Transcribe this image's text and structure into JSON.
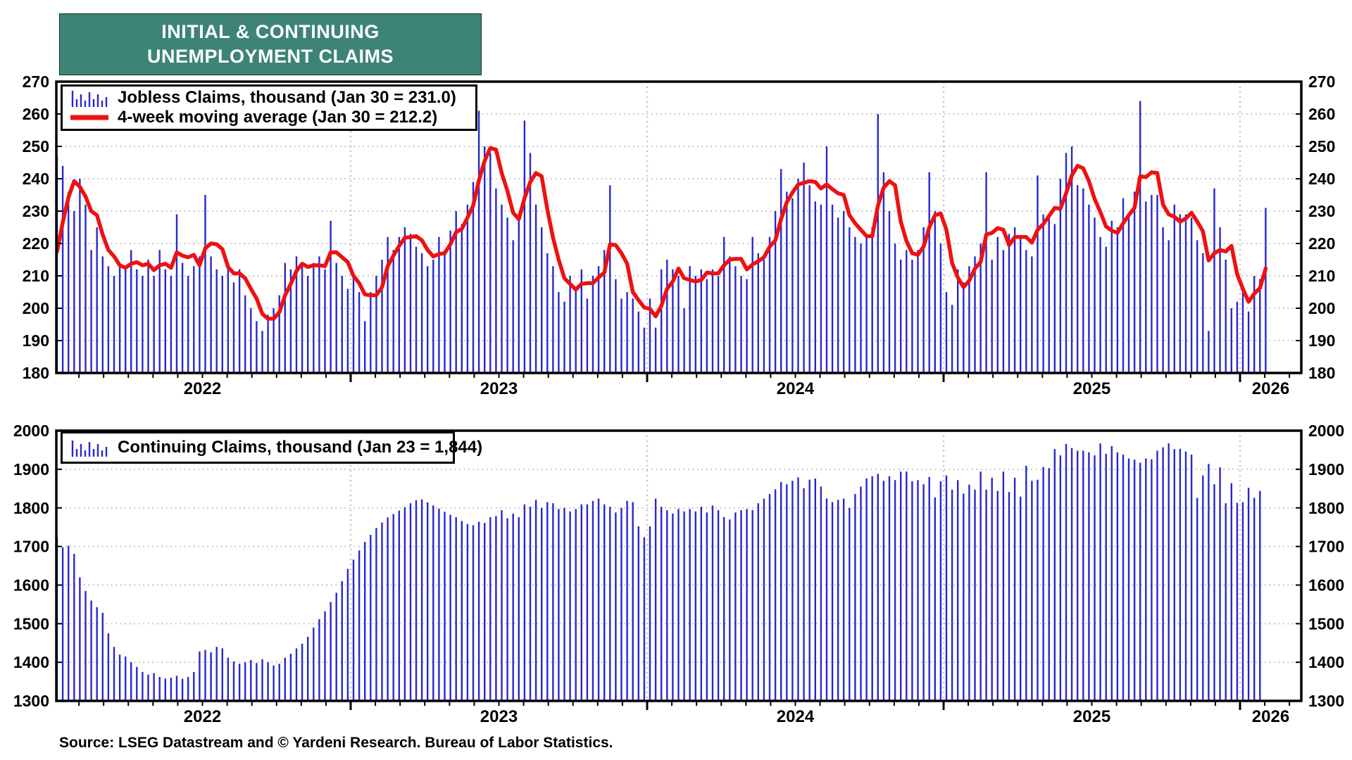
{
  "title": {
    "line1": "INITIAL & CONTINUING",
    "line2": "UNEMPLOYMENT CLAIMS"
  },
  "source_text": "Source: LSEG Datastream and © Yardeni Research. Bureau of Labor Statistics.",
  "colors": {
    "title_bg": "#3d8477",
    "bars": "#2828cd",
    "ma_line": "#ee1111",
    "grid": "#b8b8b8",
    "frame": "#000000"
  },
  "chart_data": [
    {
      "type": "bar",
      "panel": "initial-claims",
      "title": "Jobless Claims",
      "legend": [
        {
          "label": "Jobless Claims, thousand (Jan 30 = 231.0)",
          "swatch": "stems",
          "color": "#2828cd"
        },
        {
          "label": "4-week moving average (Jan 30 = 212.2)",
          "swatch": "line",
          "color": "#ee1111"
        }
      ],
      "ylim": [
        180,
        270
      ],
      "ytick_step": 10,
      "x_years": [
        2022,
        2023,
        2024,
        2025,
        2026
      ],
      "x_start_label": "Jan 2022, weekly",
      "latest": {
        "date": "Jan 30",
        "bar_value": 231.0,
        "ma_value": 212.2
      },
      "ma_window": 4,
      "prior_weeks_for_ma": [
        215,
        208,
        205,
        210
      ],
      "values": [
        247,
        244,
        236,
        230,
        240,
        232,
        218,
        225,
        216,
        213,
        210,
        214,
        213,
        218,
        212,
        210,
        215,
        210,
        218,
        212,
        210,
        229,
        214,
        210,
        213,
        216,
        235,
        216,
        212,
        210,
        213,
        208,
        212,
        204,
        200,
        196,
        193,
        198,
        200,
        204,
        214,
        212,
        216,
        213,
        210,
        214,
        216,
        212,
        227,
        214,
        210,
        206,
        210,
        205,
        196,
        205,
        210,
        215,
        222,
        218,
        222,
        225,
        223,
        219,
        217,
        213,
        215,
        222,
        218,
        224,
        230,
        226,
        232,
        239,
        261,
        250,
        248,
        237,
        232,
        228,
        221,
        229,
        258,
        248,
        232,
        225,
        217,
        213,
        205,
        202,
        210,
        206,
        212,
        203,
        210,
        213,
        218,
        238,
        209,
        203,
        205,
        203,
        199,
        194,
        203,
        194,
        212,
        215,
        212,
        210,
        200,
        213,
        210,
        212,
        209,
        212,
        210,
        222,
        216,
        213,
        210,
        209,
        222,
        217,
        215,
        222,
        230,
        243,
        236,
        234,
        240,
        245,
        238,
        233,
        232,
        250,
        232,
        228,
        230,
        225,
        222,
        220,
        222,
        225,
        260,
        242,
        230,
        220,
        215,
        218,
        215,
        218,
        225,
        242,
        230,
        220,
        205,
        201,
        212,
        208,
        213,
        216,
        220,
        242,
        215,
        222,
        218,
        223,
        225,
        222,
        218,
        216,
        241,
        229,
        228,
        226,
        240,
        248,
        250,
        238,
        237,
        232,
        228,
        222,
        219,
        227,
        225,
        234,
        229,
        236,
        264,
        233,
        235,
        235,
        225,
        221,
        232,
        229,
        229,
        228,
        221,
        217,
        193,
        237,
        225,
        215,
        200,
        202,
        207,
        199,
        210,
        209,
        231
      ],
      "grid": "dotted",
      "legend_position": "top-left"
    },
    {
      "type": "bar",
      "panel": "continuing-claims",
      "title": "Continuing Claims",
      "legend": [
        {
          "label": "Continuing Claims, thousand (Jan 23 = 1,844)",
          "swatch": "stems",
          "color": "#2828cd"
        }
      ],
      "ylim": [
        1300,
        2000
      ],
      "ytick_step": 100,
      "x_years": [
        2022,
        2023,
        2024,
        2025,
        2026
      ],
      "x_start_label": "Jan 2022, weekly",
      "latest": {
        "date": "Jan 23",
        "bar_value": 1844
      },
      "values": [
        1723,
        1698,
        1702,
        1681,
        1620,
        1585,
        1560,
        1543,
        1528,
        1475,
        1440,
        1420,
        1415,
        1400,
        1388,
        1375,
        1368,
        1372,
        1362,
        1358,
        1360,
        1365,
        1357,
        1362,
        1375,
        1428,
        1432,
        1426,
        1440,
        1436,
        1412,
        1402,
        1396,
        1400,
        1406,
        1398,
        1408,
        1400,
        1392,
        1396,
        1412,
        1422,
        1436,
        1448,
        1466,
        1490,
        1512,
        1532,
        1556,
        1580,
        1610,
        1642,
        1666,
        1690,
        1712,
        1730,
        1748,
        1762,
        1775,
        1784,
        1793,
        1802,
        1812,
        1820,
        1822,
        1814,
        1806,
        1798,
        1790,
        1782,
        1776,
        1766,
        1758,
        1755,
        1764,
        1761,
        1776,
        1779,
        1794,
        1773,
        1785,
        1776,
        1809,
        1803,
        1821,
        1800,
        1815,
        1812,
        1797,
        1800,
        1791,
        1797,
        1809,
        1809,
        1818,
        1824,
        1809,
        1803,
        1788,
        1800,
        1818,
        1815,
        1752,
        1724,
        1752,
        1824,
        1803,
        1794,
        1785,
        1797,
        1791,
        1797,
        1791,
        1803,
        1788,
        1806,
        1794,
        1776,
        1770,
        1788,
        1794,
        1797,
        1794,
        1812,
        1824,
        1836,
        1848,
        1867,
        1861,
        1870,
        1879,
        1851,
        1873,
        1876,
        1855,
        1824,
        1815,
        1821,
        1824,
        1800,
        1836,
        1855,
        1876,
        1882,
        1888,
        1870,
        1882,
        1872,
        1894,
        1894,
        1869,
        1872,
        1861,
        1880,
        1827,
        1869,
        1884,
        1847,
        1872,
        1837,
        1860,
        1847,
        1894,
        1847,
        1878,
        1844,
        1894,
        1841,
        1878,
        1829,
        1909,
        1870,
        1873,
        1906,
        1903,
        1952,
        1936,
        1966,
        1955,
        1948,
        1948,
        1944,
        1936,
        1967,
        1940,
        1960,
        1944,
        1938,
        1928,
        1925,
        1917,
        1928,
        1926,
        1948,
        1957,
        1967,
        1952,
        1953,
        1946,
        1938,
        1826,
        1884,
        1914,
        1861,
        1905,
        1812,
        1864,
        1813,
        1815,
        1852,
        1826,
        1844
      ],
      "grid": "dotted",
      "legend_position": "top-left"
    }
  ]
}
